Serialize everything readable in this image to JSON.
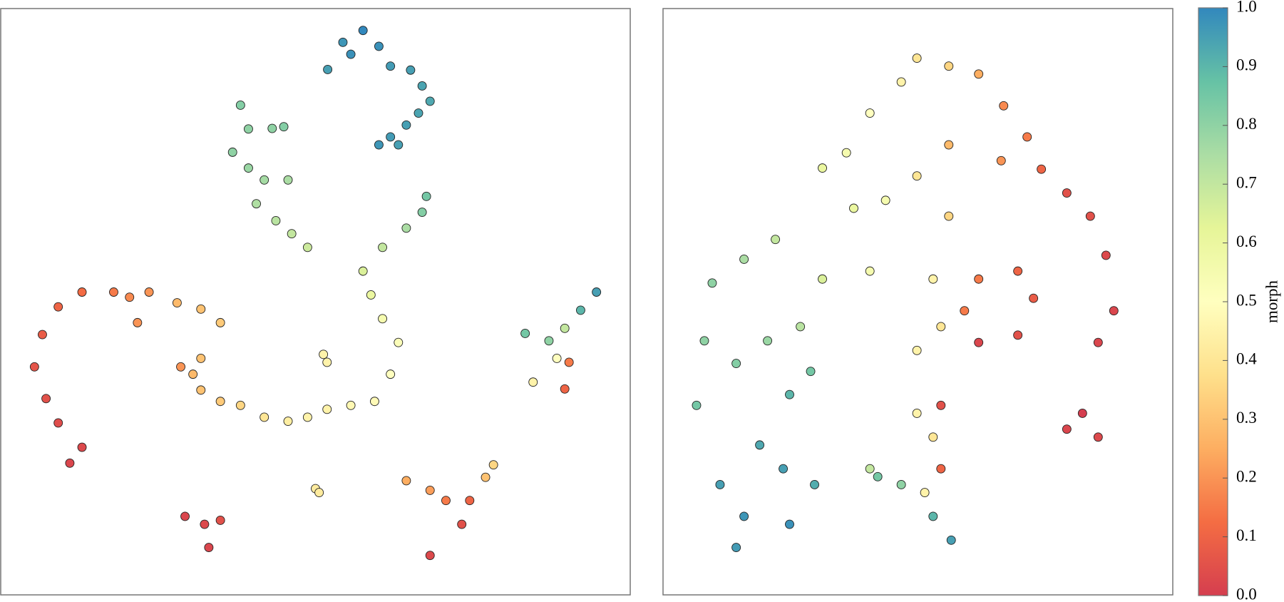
{
  "chart_data": [
    {
      "type": "scatter",
      "xlim": [
        0,
        100
      ],
      "ylim": [
        0,
        100
      ],
      "x": [
        52,
        54.5,
        57.8,
        60.4,
        62.3,
        65.6,
        67.5,
        68.8,
        66.9,
        64.9,
        62.3,
        60.4,
        63.6,
        55.8,
        37.7,
        39,
        42.9,
        44.8,
        36.4,
        39,
        41.6,
        45.5,
        40.3,
        43.5,
        46.1,
        48.7,
        68.2,
        67.5,
        64.9,
        61,
        57.8,
        59.1,
        61,
        63.6,
        62.3,
        59.7,
        55.8,
        51.9,
        48.7,
        45.5,
        41.6,
        37.7,
        34.4,
        31.2,
        29.9,
        31.2,
        27.9,
        51.3,
        51.9,
        50,
        50.6,
        27.3,
        31.2,
        34.4,
        16.9,
        11.7,
        7.8,
        5.2,
        3.9,
        5.8,
        7.8,
        11.7,
        9.7,
        19.5,
        20.8,
        22.7,
        28.6,
        31.8,
        34.4,
        32.5,
        64.9,
        68.8,
        71.4,
        75.3,
        74,
        68.8,
        77.9,
        79.2,
        96.1,
        93.5,
        90.9,
        89.6,
        85.7,
        90.9,
        84.4,
        88.3,
        91.6
      ],
      "y": [
        91,
        95.8,
        97.9,
        95.1,
        91.6,
        90.9,
        88.1,
        85.4,
        83.3,
        81.2,
        79.1,
        77.7,
        77.7,
        93.7,
        84.7,
        80.5,
        80.6,
        80.9,
        76.4,
        73.6,
        71.5,
        71.5,
        67.3,
        64.3,
        62,
        59.6,
        68.6,
        65.8,
        63,
        59.6,
        55.4,
        51.2,
        47,
        42.8,
        37.2,
        32.4,
        31.7,
        31,
        29.6,
        28.9,
        29.6,
        31.7,
        32.4,
        34.4,
        37.2,
        40,
        38.5,
        40.7,
        39.3,
        17,
        16.3,
        49.8,
        48.7,
        46.3,
        51.7,
        51.7,
        49.1,
        44.2,
        38.5,
        32.9,
        28.6,
        24.3,
        21.5,
        50.8,
        46.3,
        51.7,
        12.1,
        10.7,
        11.4,
        6.6,
        18.4,
        16.7,
        14.9,
        14.9,
        10.7,
        5.2,
        19,
        21.2,
        51.7,
        48.5,
        45.3,
        40,
        35.8,
        34.6,
        44.4,
        43.1,
        39.3
      ],
      "c": [
        0.95,
        0.97,
        1,
        0.98,
        0.96,
        0.95,
        0.94,
        0.93,
        0.94,
        0.95,
        0.96,
        0.97,
        0.95,
        0.98,
        0.82,
        0.8,
        0.8,
        0.82,
        0.8,
        0.78,
        0.76,
        0.75,
        0.74,
        0.72,
        0.7,
        0.68,
        0.85,
        0.82,
        0.75,
        0.7,
        0.65,
        0.6,
        0.55,
        0.52,
        0.5,
        0.48,
        0.47,
        0.45,
        0.45,
        0.43,
        0.4,
        0.35,
        0.32,
        0.3,
        0.28,
        0.3,
        0.2,
        0.45,
        0.45,
        0.42,
        0.42,
        0.28,
        0.3,
        0.32,
        0.15,
        0.12,
        0.1,
        0.08,
        0.06,
        0.05,
        0.04,
        0.03,
        0.02,
        0.18,
        0.2,
        0.2,
        0.02,
        0.03,
        0.05,
        0.02,
        0.25,
        0.22,
        0.15,
        0.1,
        0.05,
        0.03,
        0.3,
        0.35,
        0.95,
        0.9,
        0.7,
        0.5,
        0.45,
        0.1,
        0.85,
        0.8,
        0.15
      ]
    },
    {
      "type": "scatter",
      "xlim": [
        0,
        100
      ],
      "ylim": [
        0,
        100
      ],
      "x": [
        49.8,
        56.3,
        46.6,
        40.2,
        35.4,
        30.5,
        36.9,
        43.4,
        49.8,
        56.3,
        62.4,
        67.5,
        72.3,
        67,
        75.2,
        80.4,
        85.2,
        88.4,
        90,
        86.8,
        83.6,
        80.4,
        86.8,
        56.3,
        62.4,
        70.4,
        73.6,
        70.4,
        62.4,
        59.5,
        53.1,
        54.7,
        49.8,
        40.2,
        30.5,
        8,
        14.5,
        20.9,
        6.4,
        12.9,
        4.8,
        19.3,
        26,
        28.1,
        23.8,
        9.6,
        14.5,
        22.5,
        28.9,
        17.7,
        23.8,
        12.9,
        49.8,
        54.7,
        53.1,
        54.7,
        51.4,
        53.1,
        56.8,
        41.8,
        46.6,
        40.2
      ],
      "y": [
        93,
        91.6,
        88.8,
        83.3,
        76.3,
        73.6,
        66.5,
        67.9,
        72.2,
        77.7,
        90.2,
        84.6,
        79.1,
        74.9,
        73.4,
        69.2,
        65.1,
        58.2,
        48.4,
        42.8,
        30.3,
        27.5,
        26.1,
        65.1,
        54,
        55.4,
        50.6,
        44.1,
        42.8,
        48.4,
        54,
        45.6,
        41.4,
        55.4,
        54,
        53.3,
        57.5,
        61,
        43.1,
        39.1,
        31.7,
        43.1,
        45.6,
        37.7,
        33.6,
        17.7,
        12.1,
        20.5,
        17.7,
        24.7,
        10.7,
        6.6,
        30.3,
        31.7,
        26.1,
        20.5,
        16.3,
        12.1,
        7.9,
        19.1,
        17.7,
        20.5
      ],
      "c": [
        0.4,
        0.35,
        0.45,
        0.5,
        0.55,
        0.6,
        0.6,
        0.55,
        0.4,
        0.28,
        0.25,
        0.18,
        0.15,
        0.2,
        0.1,
        0.05,
        0.05,
        0.03,
        0.02,
        0.02,
        0,
        0.02,
        0.03,
        0.35,
        0.15,
        0.1,
        0.08,
        0.05,
        0.02,
        0.15,
        0.45,
        0.4,
        0.45,
        0.55,
        0.65,
        0.8,
        0.75,
        0.7,
        0.8,
        0.82,
        0.85,
        0.78,
        0.72,
        0.85,
        0.9,
        0.95,
        0.97,
        0.95,
        0.92,
        0.93,
        0.98,
        0.96,
        0.45,
        0.05,
        0.4,
        0.1,
        0.45,
        0.9,
        0.95,
        0.85,
        0.8,
        0.7
      ]
    },
    {
      "type": "colorbar",
      "label": "morph",
      "clim": [
        0,
        1
      ],
      "colors": [
        "#d53e4f",
        "#f46d43",
        "#fdae61",
        "#fee08b",
        "#ffffbf",
        "#e6f598",
        "#abdda4",
        "#66c2a5",
        "#3288bd"
      ],
      "cticks": [
        {
          "value": 0,
          "label": "0.0"
        },
        0.1,
        0.2,
        0.3,
        0.4,
        0.5,
        0.6,
        0.7,
        0.8,
        0.9,
        {
          "value": 1,
          "label": "1.0"
        }
      ]
    }
  ]
}
